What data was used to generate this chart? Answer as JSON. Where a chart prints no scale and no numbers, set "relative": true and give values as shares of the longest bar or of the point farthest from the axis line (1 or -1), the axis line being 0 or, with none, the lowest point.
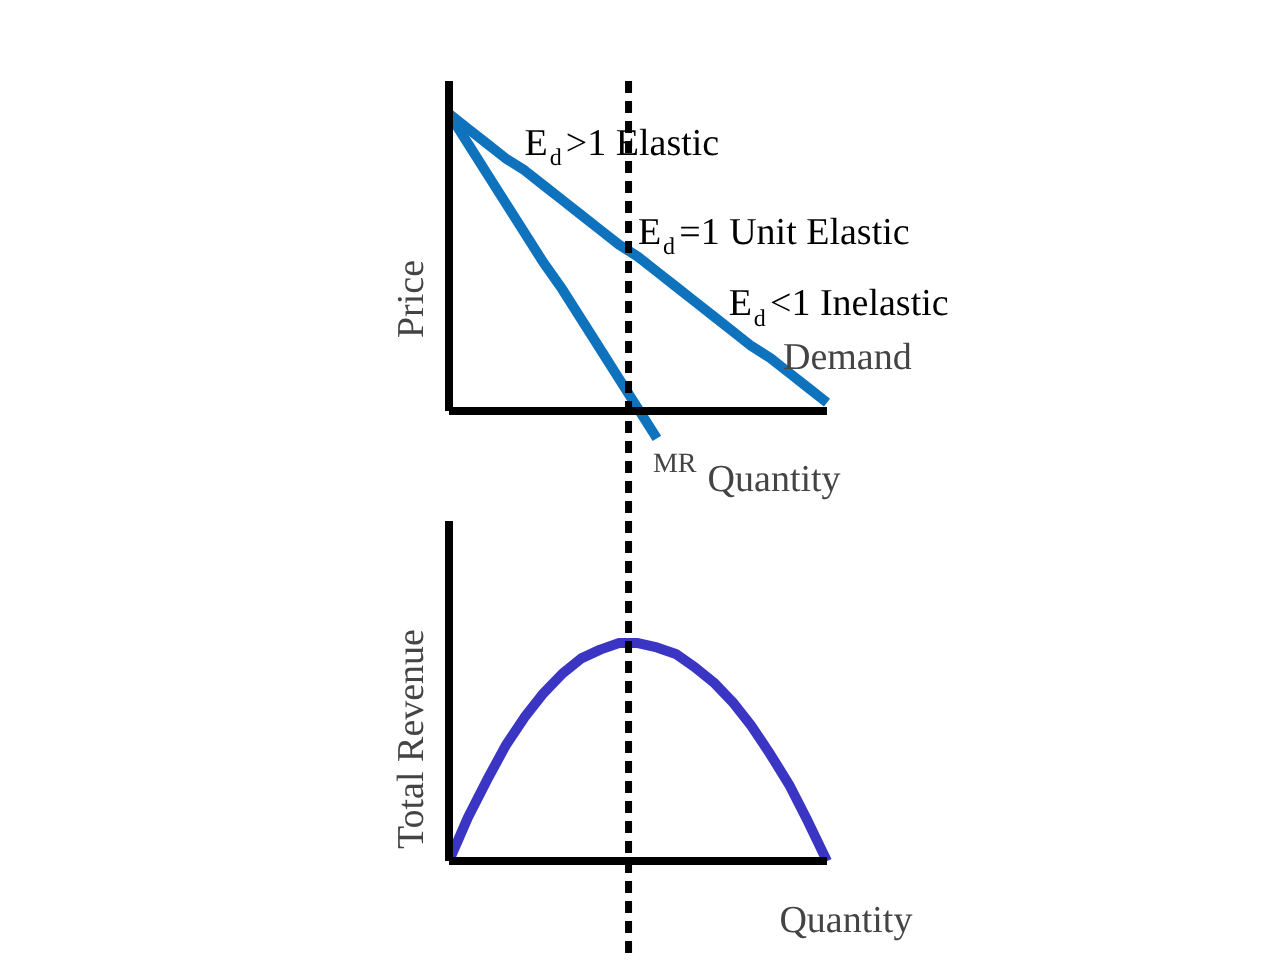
{
  "chart_data": [
    {
      "type": "line",
      "relative": true,
      "xlabel": "Quantity",
      "ylabel": "Price",
      "categories": [
        null,
        null,
        null,
        null,
        null,
        null,
        null,
        null,
        null,
        null,
        null,
        null,
        null,
        null,
        null,
        null,
        null,
        null,
        null,
        null,
        null
      ],
      "series": [
        {
          "name": "Demand",
          "color": "#0f72bd",
          "values": [
            1.0,
            0.95,
            0.9,
            0.85,
            0.81,
            0.76,
            0.71,
            0.66,
            0.61,
            0.56,
            0.52,
            0.47,
            0.42,
            0.37,
            0.32,
            0.27,
            0.22,
            0.18,
            0.13,
            0.08,
            0.03
          ]
        },
        {
          "name": "MR",
          "color": "#0f72bd",
          "values": [
            1.0,
            0.9,
            0.8,
            0.7,
            0.6,
            0.5,
            0.41,
            0.31,
            0.21,
            0.11,
            0.01,
            -0.09,
            null,
            null,
            null,
            null,
            null,
            null,
            null,
            null,
            null
          ]
        }
      ],
      "annotations": [
        "E$_{d}$>1 Elastic",
        "E$_{d}$=1 Unit Elastic",
        "E$_{d}$<1 Inelastic"
      ],
      "tick_labels": false,
      "line_style": "solid",
      "marker": "none"
    },
    {
      "type": "line",
      "relative": true,
      "xlabel": "Quantity",
      "ylabel": "Total Revenue",
      "categories": [
        null,
        null,
        null,
        null,
        null,
        null,
        null,
        null,
        null,
        null,
        null,
        null,
        null,
        null,
        null,
        null,
        null,
        null,
        null,
        null,
        null
      ],
      "series": [
        {
          "color": "#3b35c4",
          "type": "line",
          "values": [
            0.0,
            0.2,
            0.37,
            0.53,
            0.66,
            0.77,
            0.86,
            0.93,
            0.97,
            1.0,
            1.0,
            0.98,
            0.95,
            0.89,
            0.82,
            0.73,
            0.62,
            0.49,
            0.35,
            0.18,
            0.0
          ]
        }
      ],
      "tick_labels": false,
      "line_style": "solid",
      "marker": "none"
    }
  ]
}
